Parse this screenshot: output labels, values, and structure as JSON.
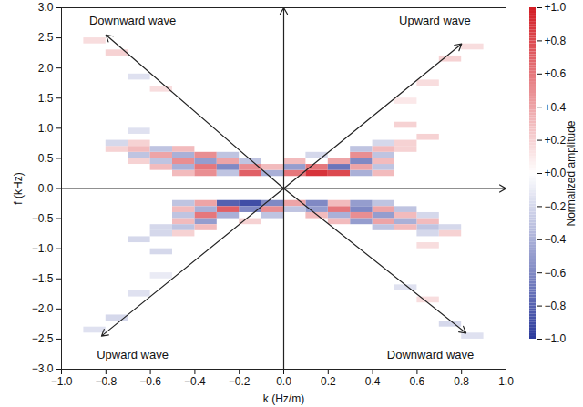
{
  "chart_data": {
    "type": "heatmap",
    "xlabel": "k (Hz/m)",
    "ylabel": "f (kHz)",
    "xlim": [
      -1,
      1
    ],
    "ylim": [
      -3,
      3
    ],
    "xticks": [
      {
        "value": -1,
        "label": "−1.0"
      },
      {
        "value": -0.8,
        "label": "−0.8"
      },
      {
        "value": -0.6,
        "label": "−0.6"
      },
      {
        "value": -0.4,
        "label": "−0.4"
      },
      {
        "value": -0.2,
        "label": "−0.2"
      },
      {
        "value": 0,
        "label": "0.0"
      },
      {
        "value": 0.2,
        "label": "0.2"
      },
      {
        "value": 0.4,
        "label": "0.4"
      },
      {
        "value": 0.6,
        "label": "0.6"
      },
      {
        "value": 0.8,
        "label": "0.8"
      },
      {
        "value": 1,
        "label": "1.0"
      }
    ],
    "yticks": [
      {
        "value": 3,
        "label": "3.0"
      },
      {
        "value": 2.5,
        "label": "2.5"
      },
      {
        "value": 2,
        "label": "2.0"
      },
      {
        "value": 1.5,
        "label": "1.5"
      },
      {
        "value": 1,
        "label": "1.0"
      },
      {
        "value": 0.5,
        "label": "0.5"
      },
      {
        "value": 0,
        "label": "0.0"
      },
      {
        "value": -0.5,
        "label": "−0.5"
      },
      {
        "value": -1,
        "label": "−1.0"
      },
      {
        "value": -1.5,
        "label": "−1.5"
      },
      {
        "value": -2,
        "label": "−2.0"
      },
      {
        "value": -2.5,
        "label": "−2.5"
      },
      {
        "value": -3,
        "label": "−3.0"
      }
    ],
    "grid": false,
    "cells": {
      "cell_width": 0.1,
      "cell_height": 0.1,
      "points": [
        [
          -0.45,
          0.25,
          0.3
        ],
        [
          -0.35,
          0.25,
          0.5
        ],
        [
          -0.25,
          0.25,
          -0.3
        ],
        [
          -0.15,
          0.25,
          0.7
        ],
        [
          -0.05,
          0.25,
          -0.4
        ],
        [
          0.05,
          0.25,
          0.6
        ],
        [
          0.15,
          0.25,
          0.9
        ],
        [
          0.25,
          0.25,
          0.8
        ],
        [
          0.35,
          0.25,
          -0.4
        ],
        [
          0.45,
          0.25,
          0.3
        ],
        [
          -0.55,
          0.35,
          0.3
        ],
        [
          -0.45,
          0.35,
          -0.4
        ],
        [
          -0.35,
          0.35,
          0.6
        ],
        [
          -0.25,
          0.35,
          -0.6
        ],
        [
          -0.15,
          0.35,
          0.5
        ],
        [
          -0.05,
          0.35,
          0.3
        ],
        [
          0.05,
          0.35,
          -0.5
        ],
        [
          0.15,
          0.35,
          0.6
        ],
        [
          0.25,
          0.35,
          -0.7
        ],
        [
          0.35,
          0.35,
          0.4
        ],
        [
          0.45,
          0.35,
          -0.3
        ],
        [
          -0.65,
          0.45,
          0.2
        ],
        [
          -0.55,
          0.45,
          -0.3
        ],
        [
          -0.45,
          0.45,
          0.5
        ],
        [
          -0.35,
          0.45,
          -0.5
        ],
        [
          -0.25,
          0.45,
          0.4
        ],
        [
          -0.15,
          0.45,
          -0.3
        ],
        [
          0.05,
          0.45,
          0.3
        ],
        [
          0.25,
          0.45,
          0.4
        ],
        [
          0.35,
          0.45,
          -0.6
        ],
        [
          0.45,
          0.45,
          0.3
        ],
        [
          -0.65,
          0.55,
          -0.3
        ],
        [
          -0.55,
          0.55,
          0.4
        ],
        [
          -0.45,
          0.55,
          -0.4
        ],
        [
          -0.35,
          0.55,
          0.5
        ],
        [
          -0.25,
          0.55,
          -0.3
        ],
        [
          0.15,
          0.55,
          -0.2
        ],
        [
          0.35,
          0.55,
          0.5
        ],
        [
          0.45,
          0.55,
          -0.3
        ],
        [
          -0.75,
          0.65,
          0.2
        ],
        [
          -0.65,
          0.65,
          0.3
        ],
        [
          -0.55,
          0.65,
          -0.3
        ],
        [
          -0.45,
          0.65,
          0.3
        ],
        [
          0.35,
          0.65,
          -0.3
        ],
        [
          0.45,
          0.65,
          0.3
        ],
        [
          0.55,
          0.65,
          0.2
        ],
        [
          -0.75,
          0.75,
          -0.2
        ],
        [
          -0.65,
          0.75,
          0.2
        ],
        [
          0.45,
          0.75,
          -0.2
        ],
        [
          0.55,
          0.75,
          0.2
        ],
        [
          -0.65,
          0.95,
          -0.15
        ],
        [
          0.55,
          1.05,
          0.2
        ],
        [
          0.65,
          0.85,
          0.2
        ],
        [
          -0.75,
          2.25,
          0.2
        ],
        [
          -0.65,
          1.85,
          -0.15
        ],
        [
          -0.55,
          1.65,
          0.15
        ],
        [
          -0.85,
          2.45,
          0.15
        ],
        [
          0.75,
          2.15,
          0.2
        ],
        [
          0.65,
          1.75,
          0.15
        ],
        [
          0.85,
          2.35,
          0.15
        ],
        [
          0.55,
          1.45,
          0.1
        ],
        [
          0.45,
          -0.25,
          -0.3
        ],
        [
          0.35,
          -0.25,
          -0.5
        ],
        [
          0.25,
          -0.25,
          0.3
        ],
        [
          0.15,
          -0.25,
          -0.6
        ],
        [
          0.05,
          -0.25,
          0.4
        ],
        [
          -0.05,
          -0.25,
          -0.6
        ],
        [
          -0.15,
          -0.25,
          -0.9
        ],
        [
          -0.25,
          -0.25,
          -0.8
        ],
        [
          -0.35,
          -0.25,
          0.4
        ],
        [
          -0.45,
          -0.25,
          -0.3
        ],
        [
          0.55,
          -0.35,
          -0.3
        ],
        [
          0.45,
          -0.35,
          0.4
        ],
        [
          0.35,
          -0.35,
          -0.6
        ],
        [
          0.25,
          -0.35,
          0.6
        ],
        [
          0.15,
          -0.35,
          -0.5
        ],
        [
          0.05,
          -0.35,
          -0.3
        ],
        [
          -0.05,
          -0.35,
          0.5
        ],
        [
          -0.15,
          -0.35,
          -0.6
        ],
        [
          -0.25,
          -0.35,
          0.7
        ],
        [
          -0.35,
          -0.35,
          -0.4
        ],
        [
          -0.45,
          -0.35,
          0.3
        ],
        [
          0.65,
          -0.45,
          -0.2
        ],
        [
          0.55,
          -0.45,
          0.3
        ],
        [
          0.45,
          -0.45,
          -0.5
        ],
        [
          0.35,
          -0.45,
          0.5
        ],
        [
          0.25,
          -0.45,
          -0.4
        ],
        [
          0.15,
          -0.45,
          0.3
        ],
        [
          -0.05,
          -0.45,
          -0.3
        ],
        [
          -0.25,
          -0.45,
          -0.4
        ],
        [
          -0.35,
          -0.45,
          0.6
        ],
        [
          -0.45,
          -0.45,
          -0.3
        ],
        [
          0.65,
          -0.55,
          0.3
        ],
        [
          0.55,
          -0.55,
          -0.4
        ],
        [
          0.45,
          -0.55,
          0.4
        ],
        [
          0.35,
          -0.55,
          -0.5
        ],
        [
          0.25,
          -0.55,
          0.3
        ],
        [
          -0.15,
          -0.55,
          0.2
        ],
        [
          -0.35,
          -0.55,
          -0.5
        ],
        [
          -0.45,
          -0.55,
          0.3
        ],
        [
          0.75,
          -0.65,
          -0.2
        ],
        [
          0.65,
          -0.65,
          -0.3
        ],
        [
          0.55,
          -0.65,
          0.3
        ],
        [
          0.45,
          -0.65,
          -0.3
        ],
        [
          -0.35,
          -0.65,
          0.3
        ],
        [
          -0.45,
          -0.65,
          -0.3
        ],
        [
          -0.55,
          -0.65,
          -0.2
        ],
        [
          0.75,
          -0.75,
          0.2
        ],
        [
          0.65,
          -0.75,
          -0.2
        ],
        [
          -0.45,
          -0.75,
          0.2
        ],
        [
          -0.55,
          -0.75,
          -0.2
        ],
        [
          0.65,
          -0.95,
          0.15
        ],
        [
          -0.55,
          -1.05,
          -0.2
        ],
        [
          -0.65,
          -0.85,
          -0.2
        ],
        [
          0.75,
          -2.25,
          -0.2
        ],
        [
          0.65,
          -1.85,
          0.15
        ],
        [
          0.55,
          -1.65,
          -0.15
        ],
        [
          0.85,
          -2.45,
          -0.15
        ],
        [
          -0.75,
          -2.15,
          -0.2
        ],
        [
          -0.65,
          -1.75,
          -0.15
        ],
        [
          -0.85,
          -2.35,
          -0.15
        ],
        [
          -0.55,
          -1.45,
          -0.1
        ]
      ]
    },
    "colorbar": {
      "label": "Normalized amplitude",
      "lim": [
        -1,
        1
      ],
      "colors": [
        "#2b3a9c",
        "#ffffff",
        "#d31c24"
      ],
      "ticks": [
        {
          "value": 1,
          "label": "+1.0"
        },
        {
          "value": 0.8,
          "label": "+0.8"
        },
        {
          "value": 0.6,
          "label": "+0.6"
        },
        {
          "value": 0.4,
          "label": "+0.4"
        },
        {
          "value": 0.2,
          "label": "+0.2"
        },
        {
          "value": 0,
          "label": "+0.0"
        },
        {
          "value": -0.2,
          "label": "−0.2"
        },
        {
          "value": -0.4,
          "label": "−0.4"
        },
        {
          "value": -0.6,
          "label": "−0.6"
        },
        {
          "value": -0.8,
          "label": "−0.8"
        },
        {
          "value": -1,
          "label": "−1.0"
        }
      ]
    },
    "annotations": [
      {
        "text": "Downward wave",
        "x": -0.68,
        "y": 2.78
      },
      {
        "text": "Upward wave",
        "x": 0.68,
        "y": 2.78
      },
      {
        "text": "Upward wave",
        "x": -0.68,
        "y": -2.76
      },
      {
        "text": "Downward wave",
        "x": 0.66,
        "y": -2.76
      }
    ],
    "arrows": [
      {
        "x1": 0,
        "y1": 0,
        "x2": -0.8,
        "y2": 2.55
      },
      {
        "x1": 0,
        "y1": 0,
        "x2": 0.8,
        "y2": 2.4
      },
      {
        "x1": 0,
        "y1": 0,
        "x2": -0.82,
        "y2": -2.45
      },
      {
        "x1": 0,
        "y1": 0,
        "x2": 0.82,
        "y2": -2.4
      }
    ]
  }
}
